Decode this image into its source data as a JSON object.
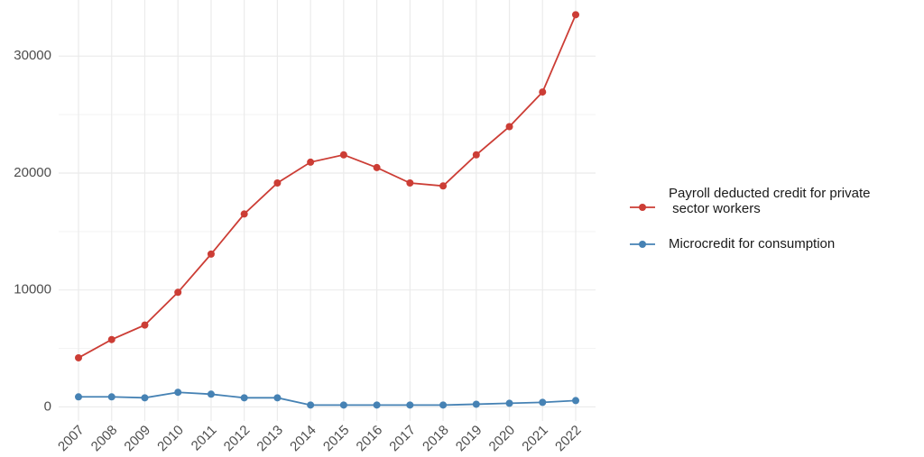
{
  "chart_data": {
    "type": "line",
    "categories": [
      "2007",
      "2008",
      "2009",
      "2010",
      "2011",
      "2012",
      "2013",
      "2014",
      "2015",
      "2016",
      "2017",
      "2018",
      "2019",
      "2020",
      "2021",
      "2022"
    ],
    "series": [
      {
        "name": "Payroll deducted credit for private\n sector workers",
        "color": "#cc3d35",
        "values": [
          4200,
          5760,
          7000,
          9800,
          13070,
          16500,
          19150,
          20930,
          21560,
          20470,
          19150,
          18900,
          21560,
          23970,
          26930,
          33540
        ]
      },
      {
        "name": "Microcredit for consumption",
        "color": "#4682b4",
        "values": [
          860,
          860,
          780,
          1250,
          1090,
          780,
          780,
          160,
          160,
          160,
          160,
          160,
          230,
          310,
          390,
          540
        ]
      }
    ],
    "ylim": [
      -1200,
      34800
    ],
    "yticks": [
      0,
      10000,
      20000,
      30000
    ],
    "minor_yticks": [
      5000,
      15000,
      25000,
      35000
    ],
    "grid": true
  }
}
